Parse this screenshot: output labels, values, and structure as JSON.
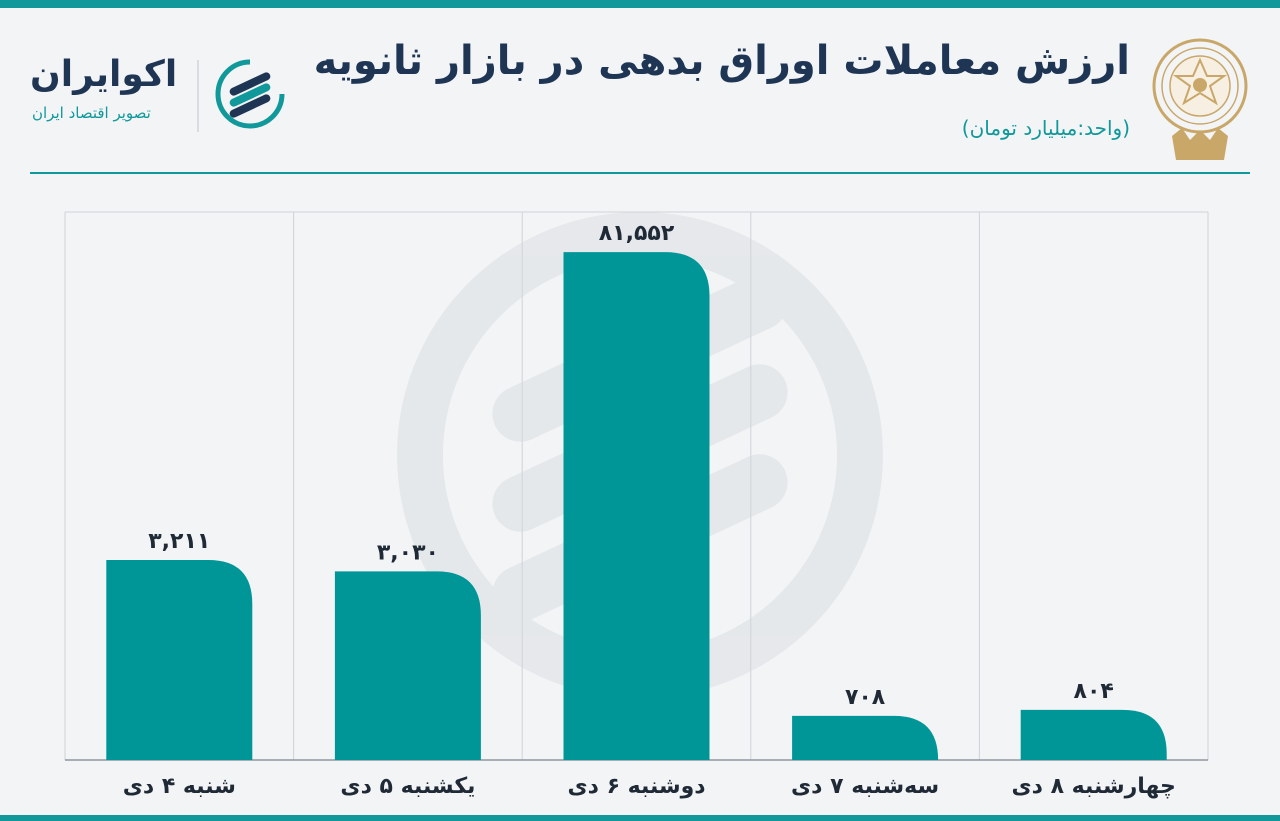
{
  "header": {
    "title": "ارزش معاملات اوراق بدهی در بازار ثانویه",
    "unit": "(واحد:میلیارد تومان)"
  },
  "brand": {
    "name": "اکوایران",
    "tagline": "تصویر اقتصاد ایران"
  },
  "colors": {
    "accent": "#10989a",
    "bar": "#009697",
    "title": "#1f3554",
    "emblem": "#c9a769"
  },
  "chart_data": {
    "type": "bar",
    "categories": [
      "شنبه ۴ دی",
      "یکشنبه ۵ دی",
      "دوشنبه ۶ دی",
      "سه‌شنبه ۷ دی",
      "چهارشنبه ۸ دی"
    ],
    "values": [
      3211,
      3030,
      81552,
      708,
      804
    ],
    "value_labels": [
      "۳,۲۱۱",
      "۳,۰۳۰",
      "۸۱,۵۵۲",
      "۷۰۸",
      "۸۰۴"
    ],
    "display_heights": [
      3211,
      3030,
      8155,
      708,
      804
    ],
    "ylim": [
      0,
      8800
    ],
    "title": "",
    "xlabel": "",
    "ylabel": "",
    "grid": true,
    "legend": "none"
  }
}
